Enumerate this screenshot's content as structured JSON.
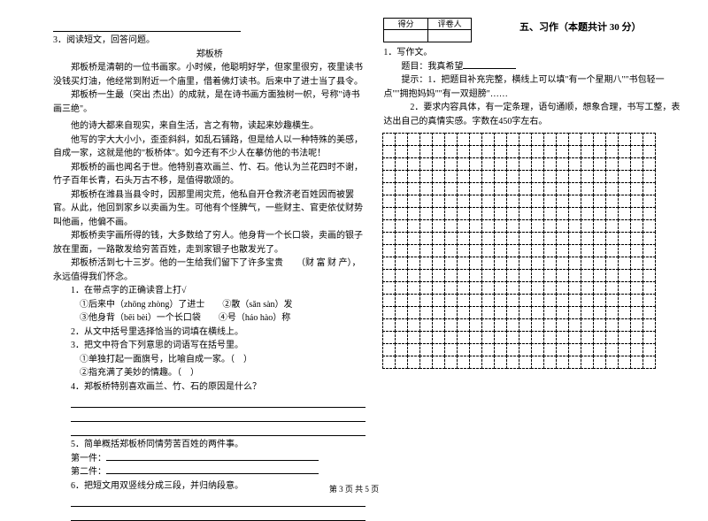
{
  "left": {
    "q3": "3．阅读短文，回答问题。",
    "title": "郑板桥",
    "p1": "郑板桥是清朝的一位书画家。小时候，他聪明好学，但家里很穷，夜里读书没钱买灯油，他经常到附近一个庙里，借着佛灯读书。后来中了进士当了县令。",
    "p2": "郑板桥一生最（突出 杰出）的成就，是在诗书画方面独树一帜，号称\"诗书画三绝\"。",
    "p3": "他的诗大都来自现实，来自生活，言之有物，读起来妙趣横生。",
    "p4": "他写的字大大小小，歪歪斜斜，如乱石铺路，但是给人以一种特殊的美感，自成一家，这就是他的\"板桥体\"。如今还有不少人在摹仿他的书法呢！",
    "p5": "郑板桥的画也闻名于世。他特别喜欢画兰、竹、石。他认为兰花四时不谢，竹子百年长青，石头万古不移，是值得歌颂的。",
    "p6": "郑板桥在潍县当县令时，因那里闹灾荒，他私自开仓救济老百姓因而被罢官。从此，他回到家乡以卖画为生。可他有个怪脾气，一些财主、官吏依仗财势叫他画，他偏不画。",
    "p7": "郑板桥卖字画所得的钱，大多数给了穷人。他身背一个长口袋，卖画的银子放在里面，一路散发给穷苦百姓，走到家银子也散发光了。",
    "p8": "郑板桥活到七十三岁。他的一生给我们留下了许多宝贵　　（财 富  财 产），永远值得我们怀念。",
    "sq1": "1．在带点字的正确读音上打√",
    "sq1a": "①后来中（zhōng zhòng）了进士　　②散（sǎn sàn）发",
    "sq1b": "③他身背（bēi bèi）一个长口袋　　④号（háo hào）称",
    "sq2": "2．从文中括号里选择恰当的词填在横线上。",
    "sq3": "3．把文中符合下列意思的词语写在括号里。",
    "sq3a": "①单独打起一面旗号，比喻自成一家。（　）",
    "sq3b": "②指充满了美妙的情趣。（　）",
    "sq4": "4．郑板桥特别喜欢画兰、竹、石的原因是什么？",
    "sq5": "5．简单概括郑板桥同情劳苦百姓的两件事。",
    "sq5a": "第一件：",
    "sq5b": "第二件：",
    "sq6": "6．把短文用双竖线分成三段，并归纳段意。"
  },
  "right": {
    "score_hd1": "得分",
    "score_hd2": "评卷人",
    "section": "五、习作（本题共计 30 分）",
    "q1": "1．写作文。",
    "topic": "题目：我真希望",
    "hint1": "提示：1．把题目补充完整，横线上可以填\"有一个星期八\"\"书包轻一点\"\"拥抱妈妈\"\"有一双翅膀\"……",
    "hint2": "2．要求内容具体，有一定条理，语句通顺，想象合理，书写工整，表达出自己的真情实感。字数在450字左右。"
  },
  "grid": {
    "rows": 19,
    "cols": 22,
    "cell_size": 15,
    "border_style": "dashed",
    "border_color": "#000000"
  },
  "footer": "第 3 页 共 5 页",
  "colors": {
    "text": "#000000",
    "background": "#ffffff",
    "divider": "#cccccc"
  },
  "fonts": {
    "body_size_pt": 10,
    "title_size_pt": 11
  }
}
